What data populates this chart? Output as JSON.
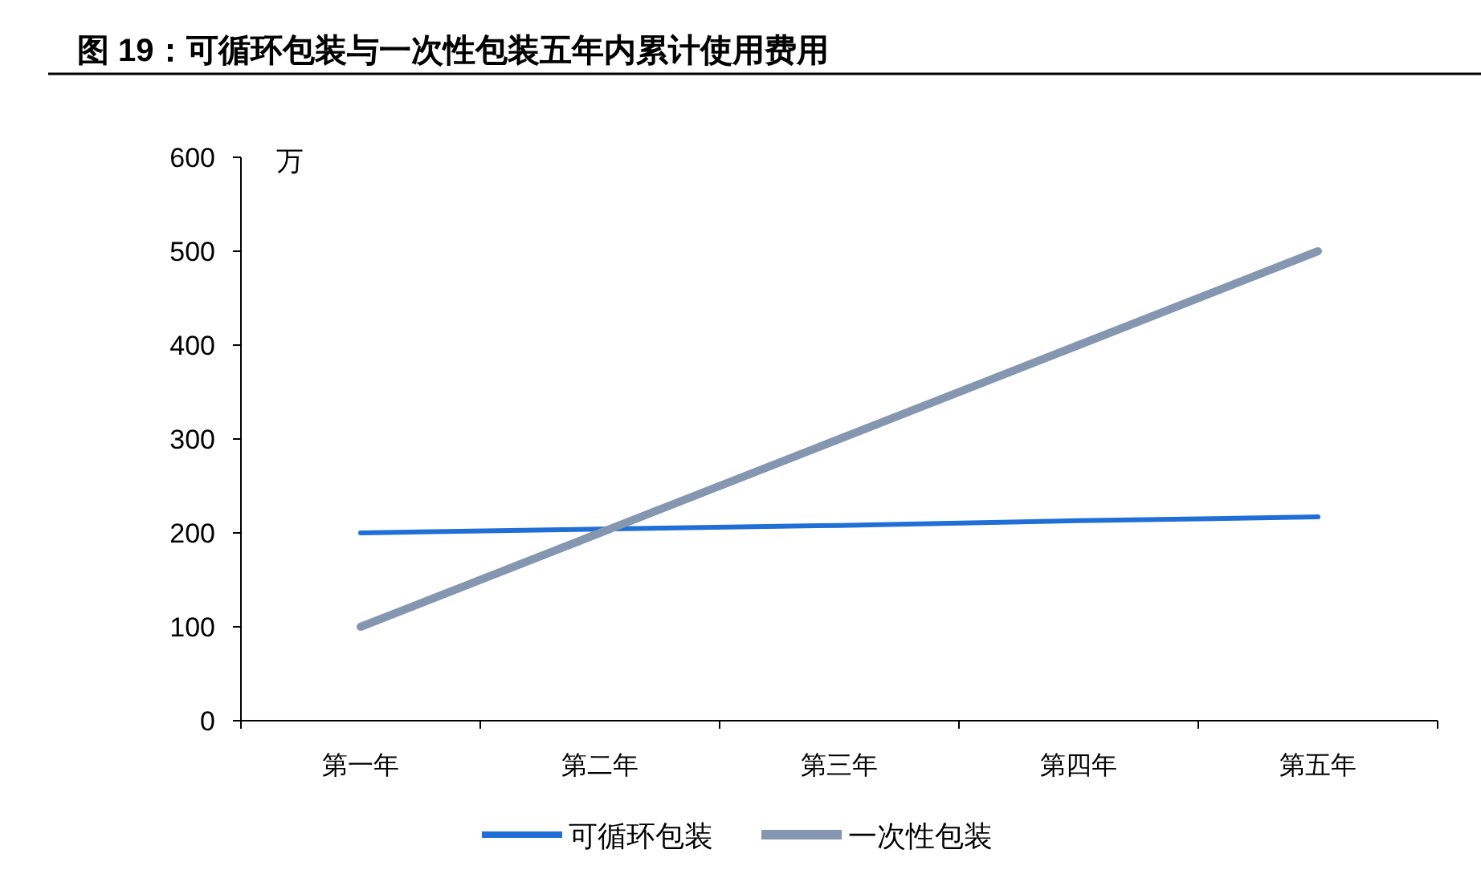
{
  "chart_data": {
    "type": "line",
    "title": "图 19：可循环包装与一次性包装五年内累计使用费用",
    "ylabel": "万",
    "categories": [
      "第一年",
      "第二年",
      "第三年",
      "第四年",
      "第五年"
    ],
    "series": [
      {
        "name": "可循环包装",
        "color": "#1f6fd6",
        "values": [
          200,
          204,
          208,
          213,
          217
        ]
      },
      {
        "name": "一次性包装",
        "color": "#8496b0",
        "values": [
          100,
          200,
          300,
          400,
          500
        ]
      }
    ],
    "ylim": [
      0,
      600
    ],
    "yticks": [
      0,
      100,
      200,
      300,
      400,
      500,
      600
    ],
    "grid": false,
    "legend": "bottom",
    "marker": "none",
    "line_style": "solid"
  }
}
